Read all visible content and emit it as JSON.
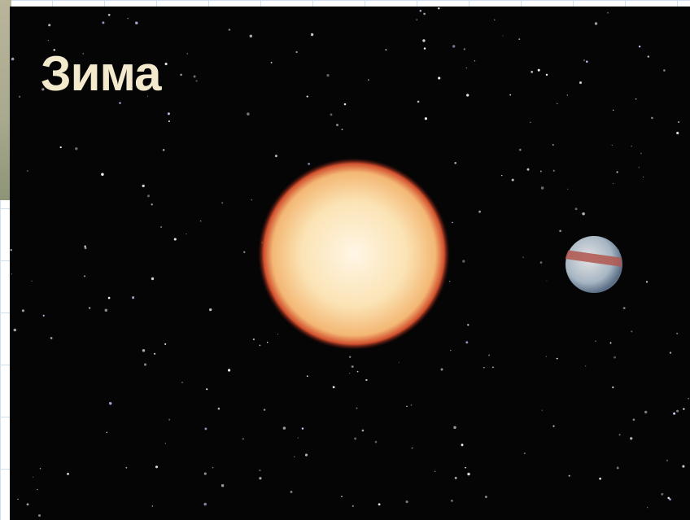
{
  "caption": "Зима"
}
